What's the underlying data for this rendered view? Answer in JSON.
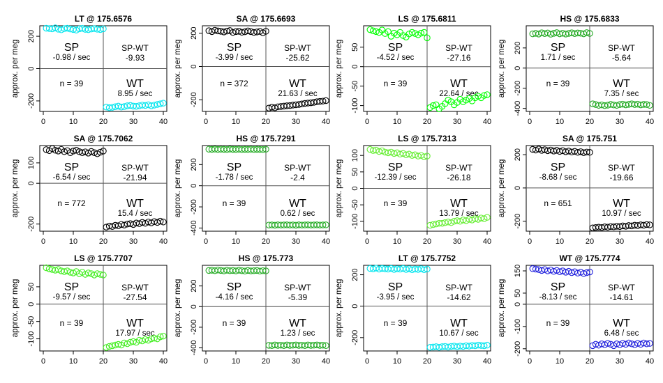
{
  "chart_data": [
    {
      "type": "scatter",
      "title": "LT @ 175.6576",
      "ylabel": "approx. per meg",
      "color": "#00e5ee",
      "xlim": [
        0,
        40
      ],
      "ylim": [
        -265,
        265
      ],
      "xticks": [
        0,
        10,
        20,
        30,
        40
      ],
      "yticks": [
        -200,
        0,
        200
      ],
      "sp": {
        "label": "SP",
        "rate": "-0.98 / sec",
        "values": [
          250,
          248,
          246,
          252,
          244,
          240,
          247,
          250,
          245,
          242,
          238,
          246,
          249,
          243,
          241,
          245,
          248,
          244,
          242,
          246
        ]
      },
      "wt": {
        "label": "WT",
        "rate": "8.95 / sec",
        "values": [
          -238,
          -242,
          -240,
          -236,
          -232,
          -238,
          -235,
          -230,
          -228,
          -232,
          -234,
          -230,
          -226,
          -228,
          -224,
          -230,
          -226,
          -222,
          -218,
          -214
        ]
      },
      "diff": {
        "label": "SP-WT",
        "value": "-9.93"
      },
      "n": "n = 39"
    },
    {
      "type": "scatter",
      "title": "SA @ 175.6693",
      "ylabel": "approx. per meg",
      "color": "#000000",
      "xlim": [
        0,
        40
      ],
      "ylim": [
        -270,
        245
      ],
      "xticks": [
        0,
        10,
        20,
        30,
        40
      ],
      "yticks": [
        -200,
        0,
        200
      ],
      "sp": {
        "label": "SP",
        "rate": "-3.99 / sec",
        "values": [
          215,
          210,
          218,
          214,
          212,
          208,
          213,
          216,
          205,
          210,
          212,
          206,
          209,
          214,
          210,
          205,
          208,
          211,
          203,
          212
        ]
      },
      "wt": {
        "label": "WT",
        "rate": "21.63 / sec",
        "values": [
          -250,
          -245,
          -248,
          -242,
          -240,
          -238,
          -236,
          -235,
          -232,
          -230,
          -228,
          -225,
          -222,
          -220,
          -218,
          -215,
          -212,
          -210,
          -208,
          -205
        ]
      },
      "diff": {
        "label": "SP-WT",
        "value": "-25.62"
      },
      "n": "n = 372"
    },
    {
      "type": "scatter",
      "title": "LS @ 175.6811",
      "ylabel": "approx. per meg",
      "color": "#00ff00",
      "xlim": [
        0,
        40
      ],
      "ylim": [
        -115,
        105
      ],
      "xticks": [
        0,
        10,
        20,
        30,
        40
      ],
      "yticks": [
        -100,
        -50,
        0,
        50
      ],
      "sp": {
        "label": "SP",
        "rate": "-4.52 / sec",
        "values": [
          95,
          92,
          90,
          88,
          94,
          85,
          90,
          78,
          86,
          82,
          88,
          80,
          76,
          84,
          88,
          85,
          82,
          86,
          88,
          74
        ]
      },
      "wt": {
        "label": "WT",
        "rate": "22.64 / sec",
        "values": [
          -105,
          -100,
          -98,
          -108,
          -102,
          -95,
          -86,
          -90,
          -98,
          -92,
          -84,
          -90,
          -86,
          -82,
          -88,
          -80,
          -76,
          -80,
          -74,
          -72
        ]
      },
      "diff": {
        "label": "SP-WT",
        "value": "-27.16"
      },
      "n": "n = 39"
    },
    {
      "type": "scatter",
      "title": "HS @ 175.6833",
      "ylabel": "approx. per meg",
      "color": "#22aa22",
      "xlim": [
        0,
        40
      ],
      "ylim": [
        -430,
        420
      ],
      "xticks": [
        0,
        10,
        20,
        30,
        40
      ],
      "yticks": [
        -400,
        -200,
        0,
        200
      ],
      "sp": {
        "label": "SP",
        "rate": "1.71 / sec",
        "values": [
          340,
          345,
          338,
          350,
          342,
          348,
          336,
          345,
          352,
          340,
          346,
          338,
          344,
          350,
          342,
          348,
          346,
          340,
          352,
          344
        ]
      },
      "wt": {
        "label": "WT",
        "rate": "7.35 / sec",
        "values": [
          -355,
          -362,
          -370,
          -365,
          -372,
          -368,
          -360,
          -366,
          -370,
          -362,
          -358,
          -365,
          -360,
          -355,
          -362,
          -358,
          -365,
          -360,
          -362,
          -370
        ]
      },
      "diff": {
        "label": "SP-WT",
        "value": "-5.64"
      },
      "n": "n = 39"
    },
    {
      "type": "scatter",
      "title": "SA @ 175.7062",
      "ylabel": "approx. per meg",
      "color": "#000000",
      "xlim": [
        0,
        40
      ],
      "ylim": [
        -235,
        185
      ],
      "xticks": [
        0,
        10,
        20,
        30,
        40
      ],
      "yticks": [
        -200,
        0,
        100
      ],
      "sp": {
        "label": "SP",
        "rate": "-6.54 / sec",
        "values": [
          165,
          160,
          170,
          162,
          158,
          166,
          155,
          160,
          150,
          158,
          162,
          155,
          150,
          154,
          148,
          156,
          150,
          145,
          152,
          158
        ]
      },
      "wt": {
        "label": "WT",
        "rate": "15.4 / sec",
        "values": [
          -215,
          -210,
          -212,
          -206,
          -208,
          -202,
          -205,
          -200,
          -198,
          -202,
          -195,
          -198,
          -192,
          -196,
          -190,
          -194,
          -188,
          -192,
          -186,
          -190
        ]
      },
      "diff": {
        "label": "SP-WT",
        "value": "-21.94"
      },
      "n": "n = 772"
    },
    {
      "type": "scatter",
      "title": "HS @ 175.7291",
      "ylabel": "approx. per meg",
      "color": "#22aa22",
      "xlim": [
        0,
        40
      ],
      "ylim": [
        -430,
        380
      ],
      "xticks": [
        0,
        10,
        20,
        30,
        40
      ],
      "yticks": [
        -400,
        -200,
        0,
        200
      ],
      "sp": {
        "label": "SP",
        "rate": "-1.78 / sec",
        "values": [
          345,
          344,
          346,
          343,
          345,
          344,
          342,
          346,
          344,
          343,
          345,
          342,
          344,
          343,
          345,
          342,
          344,
          343,
          342,
          345
        ]
      },
      "wt": {
        "label": "WT",
        "rate": "0.62 / sec",
        "values": [
          -372,
          -371,
          -373,
          -370,
          -372,
          -371,
          -370,
          -372,
          -371,
          -373,
          -370,
          -372,
          -371,
          -370,
          -372,
          -371,
          -370,
          -372,
          -371,
          -370
        ]
      },
      "diff": {
        "label": "SP-WT",
        "value": "-2.4"
      },
      "n": "n = 39"
    },
    {
      "type": "scatter",
      "title": "LS @ 175.7313",
      "ylabel": "approx. per meg",
      "color": "#66ee33",
      "xlim": [
        0,
        40
      ],
      "ylim": [
        -130,
        130
      ],
      "xticks": [
        0,
        10,
        20,
        30,
        40
      ],
      "yticks": [
        -100,
        -50,
        0,
        50,
        100
      ],
      "sp": {
        "label": "SP",
        "rate": "-12.39 / sec",
        "values": [
          118,
          115,
          116,
          112,
          114,
          110,
          108,
          110,
          106,
          108,
          104,
          106,
          102,
          104,
          100,
          102,
          98,
          100,
          96,
          98
        ]
      },
      "wt": {
        "label": "WT",
        "rate": "13.79 / sec",
        "values": [
          -112,
          -110,
          -108,
          -106,
          -106,
          -104,
          -102,
          -104,
          -100,
          -98,
          -100,
          -96,
          -98,
          -94,
          -96,
          -92,
          -94,
          -90,
          -92,
          -88
        ]
      },
      "diff": {
        "label": "SP-WT",
        "value": "-26.18"
      },
      "n": "n = 39"
    },
    {
      "type": "scatter",
      "title": "SA @ 175.751",
      "ylabel": "approx. per meg",
      "color": "#000000",
      "xlim": [
        0,
        40
      ],
      "ylim": [
        -260,
        255
      ],
      "xticks": [
        0,
        10,
        20,
        30,
        40
      ],
      "yticks": [
        -200,
        0,
        200
      ],
      "sp": {
        "label": "SP",
        "rate": "-8.68 / sec",
        "values": [
          232,
          228,
          234,
          226,
          230,
          224,
          228,
          222,
          226,
          220,
          224,
          218,
          222,
          216,
          220,
          214,
          218,
          212,
          216,
          214
        ]
      },
      "wt": {
        "label": "WT",
        "rate": "10.97 / sec",
        "values": [
          -240,
          -238,
          -236,
          -238,
          -234,
          -236,
          -232,
          -234,
          -230,
          -232,
          -228,
          -230,
          -226,
          -228,
          -224,
          -226,
          -222,
          -224,
          -220,
          -222
        ]
      },
      "diff": {
        "label": "SP-WT",
        "value": "-19.66"
      },
      "n": "n = 651"
    },
    {
      "type": "scatter",
      "title": "LS @ 175.7707",
      "ylabel": "approx. per meg",
      "color": "#44ee22",
      "xlim": [
        0,
        40
      ],
      "ylim": [
        -135,
        112
      ],
      "xticks": [
        0,
        10,
        20,
        30,
        40
      ],
      "yticks": [
        -100,
        -50,
        0,
        50
      ],
      "sp": {
        "label": "SP",
        "rate": "-9.57 / sec",
        "values": [
          105,
          102,
          100,
          98,
          100,
          96,
          94,
          96,
          92,
          90,
          94,
          88,
          92,
          86,
          90,
          88,
          84,
          88,
          86,
          84
        ]
      },
      "wt": {
        "label": "WT",
        "rate": "17.97 / sec",
        "values": [
          -125,
          -122,
          -120,
          -118,
          -116,
          -118,
          -112,
          -114,
          -110,
          -108,
          -110,
          -104,
          -106,
          -102,
          -104,
          -100,
          -98,
          -100,
          -94,
          -92
        ]
      },
      "diff": {
        "label": "SP-WT",
        "value": "-27.54"
      },
      "n": "n = 39"
    },
    {
      "type": "scatter",
      "title": "HS @ 175.773",
      "ylabel": "approx. per meg",
      "color": "#22aa22",
      "xlim": [
        0,
        40
      ],
      "ylim": [
        -430,
        400
      ],
      "xticks": [
        0,
        10,
        20,
        30,
        40
      ],
      "yticks": [
        -400,
        -200,
        0,
        200
      ],
      "sp": {
        "label": "SP",
        "rate": "-4.16 / sec",
        "values": [
          350,
          352,
          348,
          354,
          350,
          346,
          352,
          348,
          350,
          346,
          352,
          348,
          344,
          350,
          346,
          348,
          350,
          344,
          348,
          346
        ]
      },
      "wt": {
        "label": "WT",
        "rate": "1.23 / sec",
        "values": [
          -375,
          -378,
          -372,
          -376,
          -374,
          -378,
          -372,
          -376,
          -374,
          -372,
          -376,
          -374,
          -378,
          -372,
          -376,
          -374,
          -372,
          -376,
          -374,
          -378
        ]
      },
      "diff": {
        "label": "SP-WT",
        "value": "-5.39"
      },
      "n": "n = 39"
    },
    {
      "type": "scatter",
      "title": "LT @ 175.7752",
      "ylabel": "approx. per meg",
      "color": "#00e5ee",
      "xlim": [
        0,
        40
      ],
      "ylim": [
        -285,
        260
      ],
      "xticks": [
        0,
        10,
        20,
        30,
        40
      ],
      "yticks": [
        -200,
        0,
        200
      ],
      "sp": {
        "label": "SP",
        "rate": "-3.95 / sec",
        "values": [
          240,
          238,
          242,
          236,
          240,
          238,
          236,
          240,
          234,
          238,
          236,
          240,
          234,
          238,
          232,
          236,
          234,
          238,
          232,
          236
        ]
      },
      "wt": {
        "label": "WT",
        "rate": "10.67 / sec",
        "values": [
          -262,
          -260,
          -258,
          -262,
          -258,
          -256,
          -260,
          -256,
          -254,
          -258,
          -254,
          -256,
          -252,
          -254,
          -250,
          -252,
          -248,
          -250,
          -252,
          -248
        ]
      },
      "diff": {
        "label": "SP-WT",
        "value": "-14.62"
      },
      "n": "n = 39"
    },
    {
      "type": "scatter",
      "title": "WT @ 175.7774",
      "ylabel": "approx. per meg",
      "color": "#2222dd",
      "xlim": [
        0,
        40
      ],
      "ylim": [
        -210,
        175
      ],
      "xticks": [
        0,
        10,
        20,
        30,
        40
      ],
      "yticks": [
        -200,
        -100,
        0,
        50,
        150
      ],
      "sp": {
        "label": "SP",
        "rate": "-8.13 / sec",
        "values": [
          160,
          158,
          156,
          152,
          156,
          150,
          154,
          148,
          152,
          146,
          150,
          144,
          148,
          142,
          146,
          140,
          144,
          138,
          142,
          145
        ]
      },
      "wt": {
        "label": "WT",
        "rate": "6.48 / sec",
        "values": [
          -186,
          -180,
          -184,
          -178,
          -182,
          -176,
          -180,
          -186,
          -178,
          -182,
          -176,
          -180,
          -174,
          -178,
          -182,
          -176,
          -180,
          -174,
          -178,
          -176
        ]
      },
      "diff": {
        "label": "SP-WT",
        "value": "-14.61"
      },
      "n": "n = 39"
    }
  ]
}
